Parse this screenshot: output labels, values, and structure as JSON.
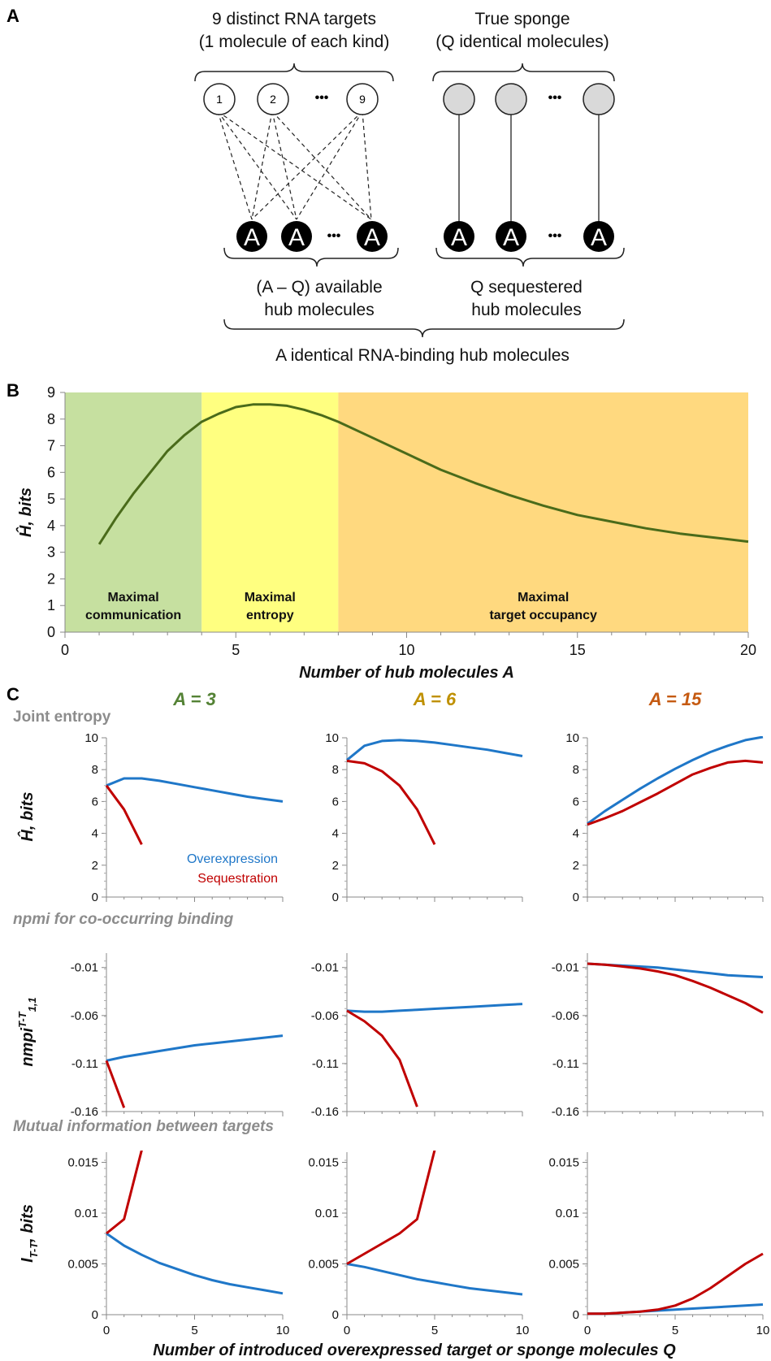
{
  "panel_labels": [
    "A",
    "B",
    "C"
  ],
  "diagram": {
    "left_caption": [
      "9 distinct RNA targets",
      "(1 molecule of each kind)"
    ],
    "right_caption": [
      "True sponge",
      "(Q identical molecules)"
    ],
    "target_labels": [
      "1",
      "2",
      "9"
    ],
    "ellipsis": "•••",
    "hub_label": "A",
    "available_caption": [
      "(A – Q) available",
      "hub molecules"
    ],
    "sequestered_caption": [
      "Q sequestered",
      "hub molecules"
    ],
    "bottom_caption": "A identical RNA-binding hub molecules",
    "colors": {
      "target_fill": "#ffffff",
      "sponge_fill": "#d9d9d9",
      "hub_fill": "#000000"
    }
  },
  "chart_data": [
    {
      "id": "B",
      "type": "line",
      "xlabel": "Number of hub molecules A",
      "ylabel": "Ĥ, bits",
      "xlim": [
        0,
        20
      ],
      "ylim": [
        0,
        9
      ],
      "xticks": [
        "0",
        "5",
        "10",
        "15",
        "20"
      ],
      "yticks": [
        "0",
        "1",
        "2",
        "3",
        "4",
        "5",
        "6",
        "7",
        "8",
        "9"
      ],
      "regions": [
        {
          "x0": 0,
          "x1": 4,
          "label": [
            "Maximal",
            "communication"
          ],
          "color": "#c6e0a0"
        },
        {
          "x0": 4,
          "x1": 8,
          "label": [
            "Maximal",
            "entropy"
          ],
          "color": "#ffff80"
        },
        {
          "x0": 8,
          "x1": 20,
          "label": [
            "Maximal",
            "target occupancy"
          ],
          "color": "#ffd97f"
        }
      ],
      "series": [
        {
          "color": "#4a6b1a",
          "x": [
            1,
            1.5,
            2,
            2.5,
            3,
            3.5,
            4,
            4.5,
            5,
            5.5,
            6,
            6.5,
            7,
            7.5,
            8,
            9,
            10,
            11,
            12,
            13,
            14,
            15,
            16,
            17,
            18,
            19,
            20
          ],
          "y": [
            3.3,
            4.3,
            5.2,
            6.0,
            6.8,
            7.4,
            7.9,
            8.2,
            8.45,
            8.55,
            8.55,
            8.5,
            8.35,
            8.15,
            7.9,
            7.3,
            6.7,
            6.1,
            5.6,
            5.15,
            4.75,
            4.4,
            4.15,
            3.9,
            3.7,
            3.55,
            3.4
          ]
        }
      ]
    },
    {
      "id": "C",
      "type": "line",
      "column_titles": [
        {
          "text": "A = 3",
          "color": "#548235"
        },
        {
          "text": "A = 6",
          "color": "#bf9000"
        },
        {
          "text": "A = 15",
          "color": "#c55a11"
        }
      ],
      "section_titles": [
        "Joint entropy",
        "npmi for co-occurring binding",
        "Mutual information between targets"
      ],
      "xlabel": "Number of introduced overexpressed target or sponge molecules Q",
      "xlim": [
        0,
        10
      ],
      "xticks": [
        "0",
        "5",
        "10"
      ],
      "legend": [
        {
          "name": "Overexpression",
          "color": "#1f77c8"
        },
        {
          "name": "Sequestration",
          "color": "#c00000"
        }
      ],
      "rows": [
        {
          "ylabel": "Ĥ, bits",
          "ylim": [
            0,
            10
          ],
          "yticks": [
            "0",
            "2",
            "4",
            "6",
            "8",
            "10"
          ],
          "panels": [
            {
              "overexpression": {
                "x": [
                  0,
                  1,
                  2,
                  3,
                  4,
                  5,
                  6,
                  7,
                  8,
                  9,
                  10
                ],
                "y": [
                  7.0,
                  7.45,
                  7.45,
                  7.3,
                  7.1,
                  6.9,
                  6.7,
                  6.5,
                  6.3,
                  6.15,
                  6.0
                ]
              },
              "sequestration": {
                "x": [
                  0,
                  1,
                  2
                ],
                "y": [
                  7.0,
                  5.5,
                  3.3
                ]
              }
            },
            {
              "overexpression": {
                "x": [
                  0,
                  1,
                  2,
                  3,
                  4,
                  5,
                  6,
                  7,
                  8,
                  9,
                  10
                ],
                "y": [
                  8.6,
                  9.5,
                  9.8,
                  9.85,
                  9.8,
                  9.7,
                  9.55,
                  9.4,
                  9.25,
                  9.05,
                  8.85
                ]
              },
              "sequestration": {
                "x": [
                  0,
                  1,
                  2,
                  3,
                  4,
                  5
                ],
                "y": [
                  8.55,
                  8.4,
                  7.9,
                  7.0,
                  5.5,
                  3.3
                ]
              }
            },
            {
              "overexpression": {
                "x": [
                  0,
                  1,
                  2,
                  3,
                  4,
                  5,
                  6,
                  7,
                  8,
                  9,
                  10
                ],
                "y": [
                  4.6,
                  5.4,
                  6.1,
                  6.8,
                  7.45,
                  8.05,
                  8.6,
                  9.1,
                  9.5,
                  9.85,
                  10.05
                ]
              },
              "sequestration": {
                "x": [
                  0,
                  1,
                  2,
                  3,
                  4,
                  5,
                  6,
                  7,
                  8,
                  9,
                  10
                ],
                "y": [
                  4.55,
                  4.95,
                  5.4,
                  5.95,
                  6.5,
                  7.1,
                  7.7,
                  8.1,
                  8.45,
                  8.55,
                  8.45
                ]
              }
            }
          ]
        },
        {
          "ylabel": "nmpi^(T-T)_(1,1)",
          "ylim": [
            -0.16,
            0.005
          ],
          "yticks": [
            "-0.16",
            "-0.11",
            "-0.06",
            "-0.01"
          ],
          "panels": [
            {
              "overexpression": {
                "x": [
                  0,
                  1,
                  2,
                  3,
                  4,
                  5,
                  6,
                  7,
                  8,
                  9,
                  10
                ],
                "y": [
                  -0.107,
                  -0.103,
                  -0.1,
                  -0.097,
                  -0.094,
                  -0.091,
                  -0.089,
                  -0.087,
                  -0.085,
                  -0.083,
                  -0.081
                ]
              },
              "sequestration": {
                "x": [
                  0,
                  1
                ],
                "y": [
                  -0.107,
                  -0.156
                ]
              }
            },
            {
              "overexpression": {
                "x": [
                  0,
                  1,
                  2,
                  3,
                  4,
                  5,
                  6,
                  7,
                  8,
                  9,
                  10
                ],
                "y": [
                  -0.055,
                  -0.056,
                  -0.056,
                  -0.055,
                  -0.054,
                  -0.053,
                  -0.052,
                  -0.051,
                  -0.05,
                  -0.049,
                  -0.048
                ]
              },
              "sequestration": {
                "x": [
                  0,
                  1,
                  2,
                  3,
                  4
                ],
                "y": [
                  -0.055,
                  -0.066,
                  -0.081,
                  -0.106,
                  -0.155
                ]
              }
            },
            {
              "overexpression": {
                "x": [
                  0,
                  1,
                  2,
                  3,
                  4,
                  5,
                  6,
                  7,
                  8,
                  9,
                  10
                ],
                "y": [
                  -0.006,
                  -0.007,
                  -0.008,
                  -0.009,
                  -0.01,
                  -0.012,
                  -0.014,
                  -0.016,
                  -0.018,
                  -0.019,
                  -0.02
                ]
              },
              "sequestration": {
                "x": [
                  0,
                  1,
                  2,
                  3,
                  4,
                  5,
                  6,
                  7,
                  8,
                  9,
                  10
                ],
                "y": [
                  -0.006,
                  -0.007,
                  -0.009,
                  -0.011,
                  -0.014,
                  -0.018,
                  -0.024,
                  -0.031,
                  -0.039,
                  -0.047,
                  -0.057
                ]
              }
            }
          ]
        },
        {
          "ylabel": "I_(T-T), bits",
          "ylim": [
            0,
            0.016
          ],
          "yticks": [
            "0",
            "0.005",
            "0.01",
            "0.015"
          ],
          "panels": [
            {
              "overexpression": {
                "x": [
                  0,
                  1,
                  2,
                  3,
                  4,
                  5,
                  6,
                  7,
                  8,
                  9,
                  10
                ],
                "y": [
                  0.008,
                  0.0068,
                  0.0059,
                  0.0051,
                  0.0045,
                  0.0039,
                  0.0034,
                  0.003,
                  0.0027,
                  0.0024,
                  0.0021
                ]
              },
              "sequestration": {
                "x": [
                  0,
                  1,
                  2
                ],
                "y": [
                  0.008,
                  0.0094,
                  0.0162
                ]
              }
            },
            {
              "overexpression": {
                "x": [
                  0,
                  1,
                  2,
                  3,
                  4,
                  5,
                  6,
                  7,
                  8,
                  9,
                  10
                ],
                "y": [
                  0.005,
                  0.0047,
                  0.0043,
                  0.0039,
                  0.0035,
                  0.0032,
                  0.0029,
                  0.0026,
                  0.0024,
                  0.0022,
                  0.002
                ]
              },
              "sequestration": {
                "x": [
                  0,
                  1,
                  2,
                  3,
                  4,
                  5
                ],
                "y": [
                  0.005,
                  0.006,
                  0.007,
                  0.008,
                  0.0094,
                  0.0162
                ]
              }
            },
            {
              "overexpression": {
                "x": [
                  0,
                  1,
                  2,
                  3,
                  4,
                  5,
                  6,
                  7,
                  8,
                  9,
                  10
                ],
                "y": [
                  0.0001,
                  0.0001,
                  0.0002,
                  0.0003,
                  0.0004,
                  0.0005,
                  0.0006,
                  0.0007,
                  0.0008,
                  0.0009,
                  0.001
                ]
              },
              "sequestration": {
                "x": [
                  0,
                  1,
                  2,
                  3,
                  4,
                  5,
                  6,
                  7,
                  8,
                  9,
                  10
                ],
                "y": [
                  0.0001,
                  0.0001,
                  0.0002,
                  0.0003,
                  0.0005,
                  0.0009,
                  0.0016,
                  0.0026,
                  0.0038,
                  0.005,
                  0.006
                ]
              }
            }
          ]
        }
      ]
    }
  ]
}
